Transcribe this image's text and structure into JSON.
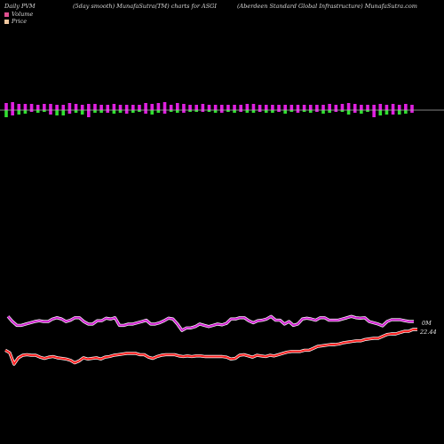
{
  "header": {
    "left": "Daily PVM",
    "middle": "(5day smooth) MunafaSutra(TM) charts for ASGI",
    "right": "(Aberdeen  Standard Global Infrastructure) MunafaSutra.com"
  },
  "legend": [
    {
      "label": "Volume",
      "color": "#e05090"
    },
    {
      "label": "Price",
      "color": "#f0c8a0"
    }
  ],
  "colors": {
    "bar_up": "#e020e0",
    "bar_down": "#30e030",
    "price_line": "#ff2020",
    "price_line_glow": "#ffffff",
    "volume_line": "#d020d0",
    "volume_line_glow": "#ffffff",
    "divider": "#b0b0b0"
  },
  "chart_data": {
    "type": "line",
    "volume_label": "0M",
    "price_label": "22.44",
    "bars": {
      "up": [
        8,
        9,
        7,
        7,
        7,
        6,
        7,
        7,
        6,
        6,
        8,
        7,
        6,
        7,
        7,
        6,
        6,
        7,
        6,
        6,
        6,
        6,
        8,
        7,
        8,
        9,
        6,
        8,
        7,
        6,
        6,
        7,
        6,
        6,
        6,
        6,
        6,
        6,
        7,
        7,
        6,
        6,
        6,
        6,
        6,
        6,
        6,
        6,
        6,
        6,
        6,
        7,
        6,
        7,
        8,
        7,
        6,
        6,
        6,
        7,
        6,
        7,
        6,
        7,
        6
      ],
      "down": [
        8,
        6,
        5,
        4,
        2,
        3,
        2,
        5,
        6,
        6,
        4,
        3,
        5,
        8,
        3,
        3,
        3,
        4,
        3,
        4,
        3,
        2,
        4,
        5,
        3,
        4,
        2,
        3,
        3,
        2,
        2,
        2,
        2,
        3,
        3,
        2,
        3,
        2,
        3,
        3,
        2,
        3,
        3,
        2,
        4,
        2,
        3,
        2,
        3,
        2,
        4,
        3,
        2,
        2,
        5,
        3,
        4,
        2,
        8,
        6,
        5,
        5,
        5,
        4,
        3
      ]
    },
    "volume_line": [
      6.5,
      4.5,
      3.0,
      3.0,
      3.5,
      4.0,
      4.5,
      4.8,
      4.5,
      4.5,
      5.5,
      6.0,
      5.5,
      4.5,
      5.0,
      6.0,
      6.0,
      4.5,
      3.5,
      3.5,
      4.8,
      4.8,
      5.8,
      5.5,
      6.0,
      3.0,
      3.0,
      3.5,
      3.5,
      4.0,
      4.5,
      5.0,
      3.5,
      3.5,
      4.0,
      4.8,
      5.8,
      5.5,
      3.5,
      1.0,
      2.0,
      2.0,
      2.5,
      3.5,
      3.0,
      2.5,
      3.0,
      3.5,
      3.2,
      3.8,
      5.5,
      5.5,
      6.0,
      6.0,
      4.8,
      4.0,
      4.8,
      5.0,
      5.5,
      6.5,
      5.0,
      5.0,
      3.5,
      4.5,
      3.0,
      3.5,
      5.5,
      5.8,
      5.5,
      5.0,
      6.0,
      6.0,
      5.0,
      5.0,
      5.0,
      5.5,
      6.0,
      6.5,
      6.0,
      5.8,
      6.0,
      4.5,
      4.0,
      3.5,
      2.8,
      4.5,
      5.2,
      5.2,
      5.2,
      4.8,
      4.5,
      4.5
    ],
    "price_line": [
      22.44,
      22.36,
      22.0,
      22.2,
      22.28,
      22.3,
      22.28,
      22.28,
      22.22,
      22.18,
      22.22,
      22.24,
      22.2,
      22.18,
      22.16,
      22.12,
      22.04,
      22.1,
      22.2,
      22.16,
      22.18,
      22.2,
      22.16,
      22.22,
      22.24,
      22.28,
      22.3,
      22.32,
      22.34,
      22.34,
      22.34,
      22.3,
      22.3,
      22.22,
      22.18,
      22.24,
      22.28,
      22.3,
      22.3,
      22.3,
      22.26,
      22.24,
      22.26,
      22.24,
      22.26,
      22.26,
      22.24,
      22.24,
      22.24,
      22.24,
      22.24,
      22.22,
      22.16,
      22.18,
      22.28,
      22.3,
      22.26,
      22.22,
      22.28,
      22.26,
      22.24,
      22.28,
      22.26,
      22.3,
      22.34,
      22.38,
      22.4,
      22.4,
      22.4,
      22.44,
      22.44,
      22.5,
      22.56,
      22.58,
      22.6,
      22.62,
      22.62,
      22.64,
      22.68,
      22.7,
      22.72,
      22.74,
      22.74,
      22.78,
      22.8,
      22.82,
      22.82,
      22.88,
      22.94,
      22.96,
      22.96,
      23.0,
      23.04,
      23.04,
      23.1,
      23.1
    ]
  }
}
